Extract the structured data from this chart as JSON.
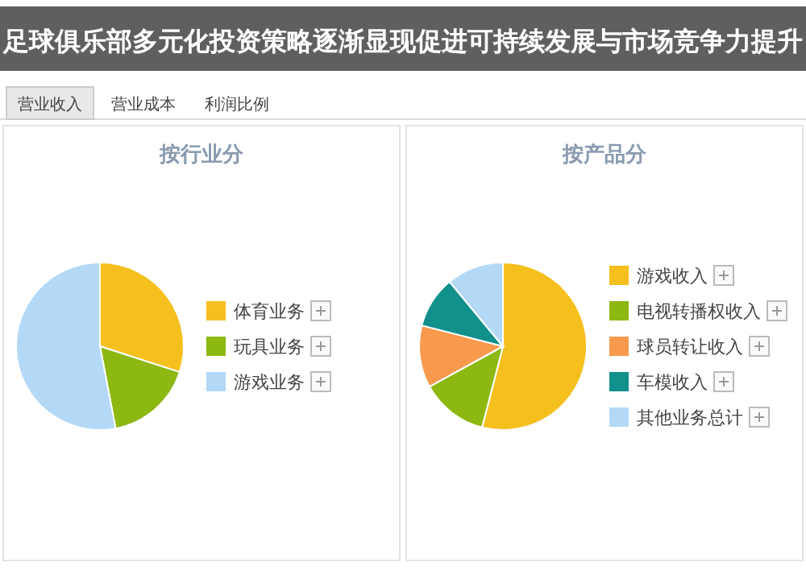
{
  "chart_data": [
    {
      "type": "pie",
      "title": "按行业分",
      "annotations": [
        "足球俱乐部多元化投资策略逐渐显现促进可持续发展与市场竞争力提升",
        "营业收入",
        "营业成本",
        "利润比例"
      ],
      "categories": [
        "体育业务",
        "玩具业务",
        "游戏业务"
      ],
      "values": [
        30,
        17,
        53
      ],
      "colors": [
        "#f5c01e",
        "#8db812",
        "#b3d9f7"
      ],
      "legend": "right"
    },
    {
      "type": "pie",
      "title": "按产品分",
      "categories": [
        "游戏收入",
        "电视转播权收入",
        "球员转让收入",
        "车模收入",
        "其他业务总计"
      ],
      "values": [
        54,
        13,
        12,
        10,
        11
      ],
      "colors": [
        "#f5c01e",
        "#8db812",
        "#f79a4d",
        "#11908c",
        "#b3d9f7"
      ],
      "legend": "right"
    }
  ]
}
